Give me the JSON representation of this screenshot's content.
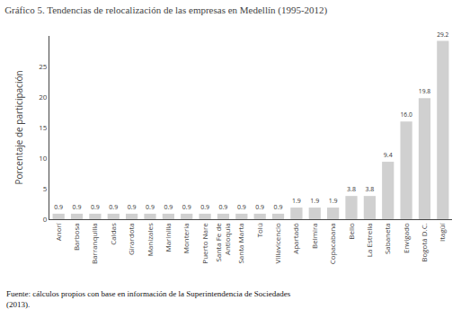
{
  "chart_data": {
    "type": "bar",
    "title": "Gráfico 5. Tendencias de relocalización de las empresas en Medellín (1995-2012)",
    "ylabel": "Porcentaje de participación",
    "annotations": [
      "Fuente: cálculos propios con base en información de la Superintendencia de Sociedades\n(2013)."
    ],
    "categories": [
      "Anorí",
      "Barbosa",
      "Barranquilla",
      "Caldas",
      "Girardota",
      "Manizales",
      "Marinilla",
      "Montería",
      "Puerto Nare",
      "Santa Fe de\nAntioquia",
      "Santa Marta",
      "Tolú",
      "Villavicencio",
      "Apartadó",
      "Belmira",
      "Copacabana",
      "Bello",
      "La Estrella",
      "Sabaneta",
      "Envigado",
      "Bogotá D.C.",
      "Itagüí"
    ],
    "values": [
      0.9,
      0.9,
      0.9,
      0.9,
      0.9,
      0.9,
      0.9,
      0.9,
      0.9,
      0.9,
      0.9,
      0.9,
      0.9,
      1.9,
      1.9,
      1.9,
      3.8,
      3.8,
      9.4,
      16.0,
      19.8,
      29.2
    ],
    "value_labels": [
      "0.9",
      "0.9",
      "0.9",
      "0.9",
      "0.9",
      "0.9",
      "0.9",
      "0.9",
      "0.9",
      "0.9",
      "0.9",
      "0.9",
      "0.9",
      "1.9",
      "1.9",
      "1.9",
      "3.8",
      "3.8",
      "9.4",
      "16.0",
      "19.8",
      "29.2"
    ],
    "data_labels": true,
    "color": "#d0d0d0",
    "ylim": [
      0,
      30
    ],
    "yticks": [
      0,
      5,
      10,
      15,
      20,
      25
    ],
    "grid": false
  }
}
